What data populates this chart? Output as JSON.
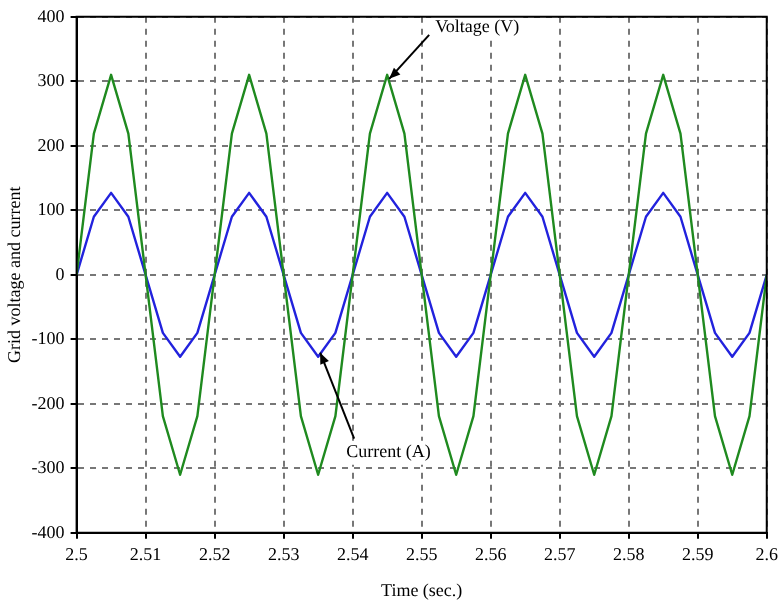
{
  "chart_data": {
    "type": "line",
    "xlabel": "Time (sec.)",
    "ylabel": "Grid voltage and current",
    "x": [
      2.5,
      2.5025,
      2.505,
      2.5075,
      2.51,
      2.5125,
      2.515,
      2.5175,
      2.52,
      2.5225,
      2.525,
      2.5275,
      2.53,
      2.5325,
      2.535,
      2.5375,
      2.54,
      2.5425,
      2.545,
      2.5475,
      2.55,
      2.5525,
      2.555,
      2.5575,
      2.56,
      2.5625,
      2.565,
      2.5675,
      2.57,
      2.5725,
      2.575,
      2.5775,
      2.58,
      2.5825,
      2.585,
      2.5875,
      2.59,
      2.5925,
      2.595,
      2.5975,
      2.6
    ],
    "series": [
      {
        "color": "#1f8a1f",
        "values": [
          0,
          219,
          310,
          219,
          0,
          -219,
          -310,
          -219,
          0,
          219,
          310,
          219,
          0,
          -219,
          -310,
          -219,
          0,
          219,
          310,
          219,
          0,
          -219,
          -310,
          -219,
          0,
          219,
          310,
          219,
          0,
          -219,
          -310,
          -219,
          0,
          219,
          310,
          219,
          0,
          -219,
          -310,
          -219,
          0
        ]
      },
      {
        "color": "#2222dd",
        "values": [
          0,
          90,
          127,
          90,
          0,
          -90,
          -127,
          -90,
          0,
          90,
          127,
          90,
          0,
          -90,
          -127,
          -90,
          0,
          90,
          127,
          90,
          0,
          -90,
          -127,
          -90,
          0,
          90,
          127,
          90,
          0,
          -90,
          -127,
          -90,
          0,
          90,
          127,
          90,
          0,
          -90,
          -127,
          -90,
          0
        ]
      }
    ],
    "xlim": [
      2.5,
      2.6
    ],
    "xticks": [
      2.5,
      2.51,
      2.52,
      2.53,
      2.54,
      2.55,
      2.56,
      2.57,
      2.58,
      2.59,
      2.6
    ],
    "ylim": [
      -400,
      400
    ],
    "yticks": [
      -400,
      -300,
      -200,
      -100,
      0,
      100,
      200,
      300,
      400
    ],
    "grid": true,
    "marker": "none",
    "line_style": "solid",
    "legend": false,
    "annotations": [
      {
        "text": "Voltage (V)",
        "x": 2.545,
        "y": 310
      },
      {
        "text": "Current (A)",
        "x": 2.535,
        "y": -127
      }
    ]
  }
}
